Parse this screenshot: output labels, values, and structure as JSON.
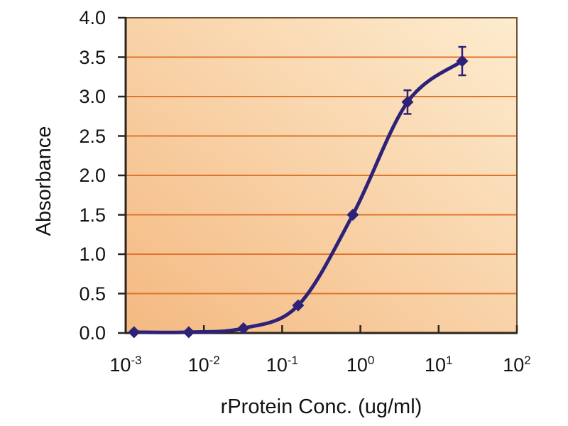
{
  "chart_data": {
    "type": "line",
    "title": "",
    "xlabel": "rProtein Conc. (ug/ml)",
    "ylabel": "Absorbance",
    "x_scale": "log10",
    "xlim_exponents": [
      -3,
      2
    ],
    "x_tick_base": "10",
    "x_tick_exponents": [
      -3,
      -2,
      -1,
      0,
      1,
      2
    ],
    "ylim": [
      0,
      4
    ],
    "y_ticks": [
      0,
      0.5,
      1,
      1.5,
      2,
      2.5,
      3,
      3.5,
      4
    ],
    "y_tick_labels": [
      "0.0",
      "0.5",
      "1.0",
      "1.5",
      "2.0",
      "2.5",
      "3.0",
      "3.5",
      "4.0"
    ],
    "grid": "horizontal",
    "legend": "none",
    "series": [
      {
        "name": "absorbance-curve",
        "marker": "diamond",
        "color": "#2d2178",
        "points": [
          {
            "x": 0.00128,
            "y": 0.01,
            "y_err": 0
          },
          {
            "x": 0.0064,
            "y": 0.01,
            "y_err": 0
          },
          {
            "x": 0.032,
            "y": 0.06,
            "y_err": 0
          },
          {
            "x": 0.16,
            "y": 0.35,
            "y_err": 0
          },
          {
            "x": 0.8,
            "y": 1.5,
            "y_err": 0
          },
          {
            "x": 4,
            "y": 2.93,
            "y_err": 0.15
          },
          {
            "x": 20,
            "y": 3.45,
            "y_err": 0.18
          }
        ]
      }
    ],
    "colors": {
      "figure_bg": "#ffffff",
      "plot_bg_gradient_start": "#f4b981",
      "plot_bg_gradient_end": "#fdeccf",
      "gridline": "#e0742d",
      "frame": "#6e5031",
      "axis": "#2b241e",
      "curve": "#2d2178",
      "text": "#121212"
    }
  }
}
